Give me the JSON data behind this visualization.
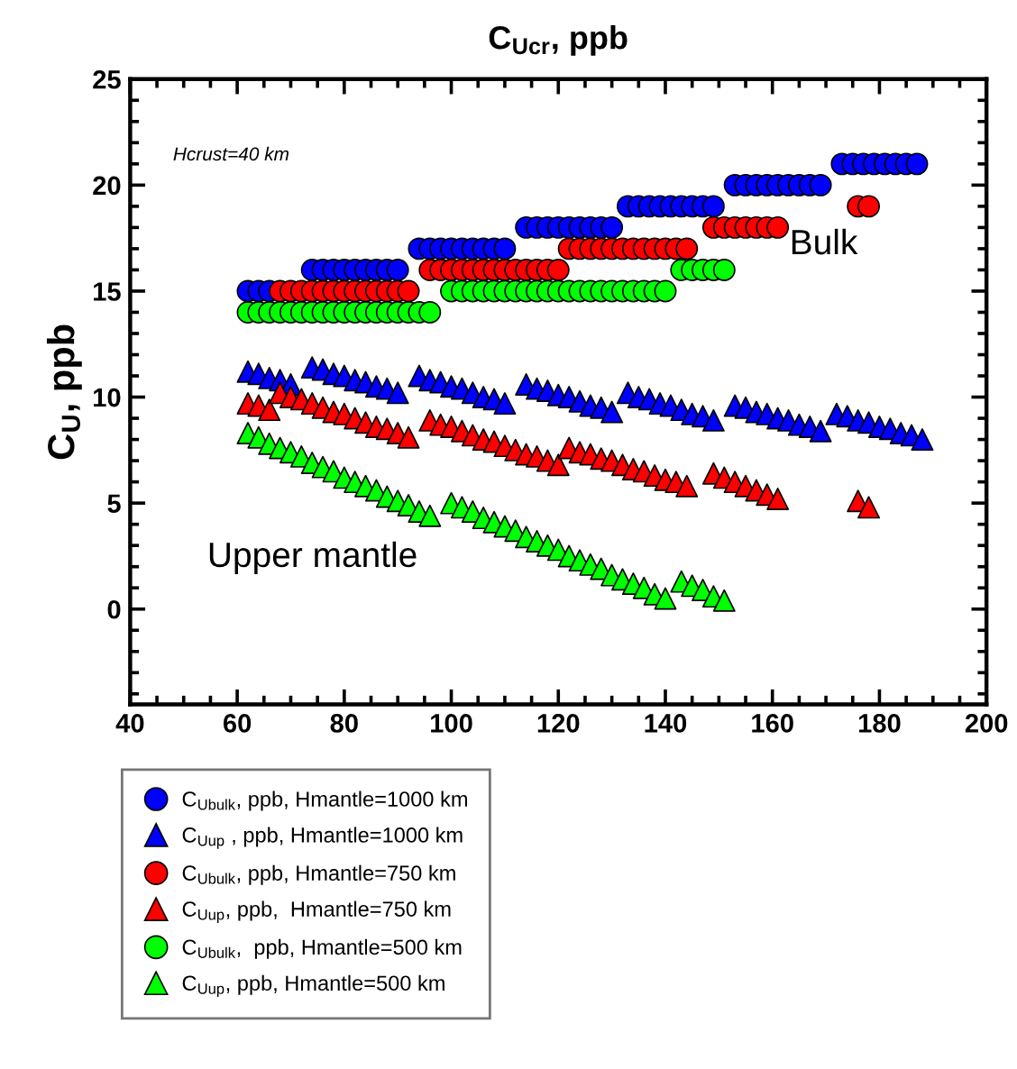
{
  "chart_data": {
    "type": "scatter",
    "title": "C$_{Ucr}$, ppb",
    "ylabel": "C$_{U}$, ppb",
    "annotations": [
      "Hcrust=40 km",
      "Bulk",
      "Upper mantle"
    ],
    "xlim": [
      40,
      200
    ],
    "xticks": [
      40,
      60,
      80,
      100,
      120,
      140,
      160,
      180,
      200
    ],
    "ylim": [
      -4.5,
      25
    ],
    "yticks": [
      0,
      5,
      10,
      15,
      20,
      25
    ],
    "grid": false,
    "legend": "bottom",
    "series": [
      {
        "name": "C$_{Ubulk}$, ppb, Hmantle=1000 km",
        "color": "#0000ff",
        "marker": "circle",
        "x": [
          62,
          64,
          66,
          74,
          76,
          78,
          80,
          82,
          84,
          86,
          88,
          90,
          94,
          96,
          98,
          100,
          102,
          104,
          106,
          108,
          110,
          114,
          116,
          118,
          120,
          122,
          124,
          126,
          128,
          130,
          133,
          135,
          137,
          139,
          141,
          143,
          145,
          147,
          149,
          153,
          155,
          157,
          159,
          161,
          163,
          165,
          167,
          169,
          173,
          175,
          177,
          179,
          181,
          183,
          185,
          187
        ],
        "values": [
          15,
          15,
          15,
          16,
          16,
          16,
          16,
          16,
          16,
          16,
          16,
          16,
          17,
          17,
          17,
          17,
          17,
          17,
          17,
          17,
          17,
          18,
          18,
          18,
          18,
          18,
          18,
          18,
          18,
          18,
          19,
          19,
          19,
          19,
          19,
          19,
          19,
          19,
          19,
          20,
          20,
          20,
          20,
          20,
          20,
          20,
          20,
          20,
          21,
          21,
          21,
          21,
          21,
          21,
          21,
          21
        ]
      },
      {
        "name": "C$_{Uup}$ , ppb, Hmantle=1000 km",
        "color": "#0000ff",
        "marker": "triangle",
        "x": [
          62,
          64,
          66,
          68,
          70,
          74,
          76,
          78,
          80,
          82,
          84,
          86,
          88,
          90,
          94,
          96,
          98,
          100,
          102,
          104,
          106,
          108,
          110,
          114,
          116,
          118,
          120,
          122,
          124,
          126,
          128,
          130,
          133,
          135,
          137,
          139,
          141,
          143,
          145,
          147,
          149,
          153,
          155,
          157,
          159,
          161,
          163,
          165,
          167,
          169,
          172,
          174,
          176,
          178,
          180,
          182,
          184,
          186,
          188
        ],
        "values": [
          11.2,
          11.1,
          10.9,
          10.8,
          10.6,
          11.4,
          11.3,
          11.1,
          11.0,
          10.8,
          10.7,
          10.5,
          10.4,
          10.2,
          11.0,
          10.8,
          10.7,
          10.5,
          10.4,
          10.2,
          10.0,
          9.9,
          9.7,
          10.6,
          10.4,
          10.3,
          10.1,
          10.0,
          9.8,
          9.6,
          9.5,
          9.3,
          10.2,
          10.0,
          9.9,
          9.7,
          9.6,
          9.4,
          9.2,
          9.1,
          8.9,
          9.6,
          9.5,
          9.3,
          9.2,
          9.0,
          8.9,
          8.7,
          8.6,
          8.4,
          9.2,
          9.1,
          8.9,
          8.8,
          8.6,
          8.5,
          8.3,
          8.2,
          8.0
        ]
      },
      {
        "name": "C$_{Ubulk}$, ppb, Hmantle=750 km",
        "color": "#ff0000",
        "marker": "circle",
        "x": [
          68,
          70,
          72,
          74,
          76,
          78,
          80,
          82,
          84,
          86,
          88,
          90,
          92,
          96,
          98,
          100,
          102,
          104,
          106,
          108,
          110,
          112,
          114,
          116,
          118,
          120,
          122,
          124,
          126,
          128,
          130,
          132,
          134,
          136,
          138,
          140,
          142,
          144,
          149,
          151,
          153,
          155,
          157,
          159,
          161,
          176,
          178
        ],
        "values": [
          15,
          15,
          15,
          15,
          15,
          15,
          15,
          15,
          15,
          15,
          15,
          15,
          15,
          16,
          16,
          16,
          16,
          16,
          16,
          16,
          16,
          16,
          16,
          16,
          16,
          16,
          17,
          17,
          17,
          17,
          17,
          17,
          17,
          17,
          17,
          17,
          17,
          17,
          18,
          18,
          18,
          18,
          18,
          18,
          18,
          19,
          19
        ]
      },
      {
        "name": "C$_{Uup}$, ppb,  Hmantle=750 km",
        "color": "#ff0000",
        "marker": "triangle",
        "x": [
          62,
          64,
          66,
          68,
          70,
          72,
          74,
          76,
          78,
          80,
          82,
          84,
          86,
          88,
          90,
          92,
          96,
          98,
          100,
          102,
          104,
          106,
          108,
          110,
          112,
          114,
          116,
          118,
          120,
          122,
          124,
          126,
          128,
          130,
          132,
          134,
          136,
          138,
          140,
          142,
          144,
          149,
          151,
          153,
          155,
          157,
          159,
          161,
          176,
          178
        ],
        "values": [
          9.7,
          9.6,
          9.4,
          10.2,
          10.0,
          9.9,
          9.7,
          9.5,
          9.3,
          9.2,
          9.0,
          8.8,
          8.6,
          8.5,
          8.3,
          8.1,
          8.9,
          8.7,
          8.6,
          8.4,
          8.2,
          8.0,
          7.9,
          7.7,
          7.5,
          7.3,
          7.2,
          7.0,
          6.8,
          7.6,
          7.4,
          7.3,
          7.1,
          7.0,
          6.8,
          6.6,
          6.5,
          6.3,
          6.1,
          6.0,
          5.8,
          6.4,
          6.2,
          6.0,
          5.8,
          5.6,
          5.4,
          5.2,
          5.1,
          4.8
        ]
      },
      {
        "name": "C$_{Ubulk}$,  ppb, Hmantle=500 km",
        "color": "#00ff00",
        "marker": "circle",
        "x": [
          62,
          64,
          66,
          68,
          70,
          72,
          74,
          76,
          78,
          80,
          82,
          84,
          86,
          88,
          90,
          92,
          94,
          96,
          100,
          102,
          104,
          106,
          108,
          110,
          112,
          114,
          116,
          118,
          120,
          122,
          124,
          126,
          128,
          130,
          132,
          134,
          136,
          138,
          140,
          143,
          145,
          147,
          149,
          151
        ],
        "values": [
          14,
          14,
          14,
          14,
          14,
          14,
          14,
          14,
          14,
          14,
          14,
          14,
          14,
          14,
          14,
          14,
          14,
          14,
          15,
          15,
          15,
          15,
          15,
          15,
          15,
          15,
          15,
          15,
          15,
          15,
          15,
          15,
          15,
          15,
          15,
          15,
          15,
          15,
          15,
          16,
          16,
          16,
          16,
          16
        ]
      },
      {
        "name": "C$_{Uup}$, ppb, Hmantle=500 km",
        "color": "#00ff00",
        "marker": "triangle",
        "x": [
          62,
          64,
          66,
          68,
          70,
          72,
          74,
          76,
          78,
          80,
          82,
          84,
          86,
          88,
          90,
          92,
          94,
          96,
          100,
          102,
          104,
          106,
          108,
          110,
          112,
          114,
          116,
          118,
          120,
          122,
          124,
          126,
          128,
          130,
          132,
          134,
          136,
          138,
          140,
          143,
          145,
          147,
          149,
          151
        ],
        "values": [
          8.3,
          8.1,
          7.8,
          7.6,
          7.4,
          7.2,
          6.9,
          6.7,
          6.5,
          6.2,
          6.0,
          5.8,
          5.6,
          5.3,
          5.1,
          4.9,
          4.6,
          4.4,
          5.0,
          4.8,
          4.6,
          4.3,
          4.1,
          3.9,
          3.7,
          3.4,
          3.2,
          3.0,
          2.8,
          2.5,
          2.3,
          2.1,
          1.9,
          1.6,
          1.4,
          1.2,
          1.0,
          0.7,
          0.5,
          1.3,
          1.1,
          0.9,
          0.6,
          0.4
        ]
      }
    ]
  }
}
